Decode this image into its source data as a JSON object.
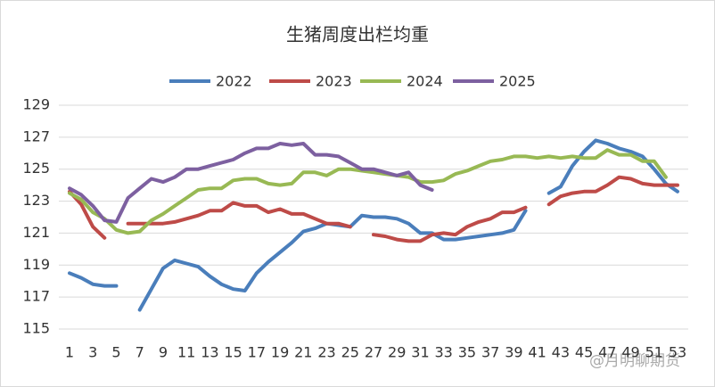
{
  "chart_data": {
    "type": "line",
    "title": "生猪周度出栏均重",
    "watermark": "@月明聊期货",
    "categories": [
      1,
      null,
      3,
      null,
      5,
      null,
      7,
      null,
      9,
      null,
      11,
      null,
      13,
      null,
      15,
      null,
      17,
      null,
      19,
      null,
      21,
      null,
      23,
      null,
      25,
      null,
      27,
      null,
      29,
      null,
      31,
      null,
      33,
      null,
      35,
      null,
      37,
      null,
      39,
      null,
      41,
      null,
      43,
      null,
      45,
      null,
      47,
      null,
      49,
      null,
      51,
      null,
      53
    ],
    "ylim": [
      115,
      129
    ],
    "yticks": [
      115,
      117,
      119,
      121,
      123,
      125,
      127,
      129
    ],
    "grid": true,
    "legend": "top",
    "series": [
      {
        "name": "2022",
        "color": "#4a7ebb",
        "values": [
          118.5,
          118.2,
          117.8,
          117.7,
          117.7,
          null,
          116.2,
          117.5,
          118.8,
          119.3,
          119.1,
          118.9,
          118.3,
          117.8,
          117.5,
          117.4,
          118.5,
          119.2,
          119.8,
          120.4,
          121.1,
          121.3,
          121.6,
          121.5,
          121.4,
          122.1,
          122.0,
          122.0,
          121.9,
          121.6,
          121.0,
          121.0,
          120.6,
          120.6,
          120.7,
          120.8,
          120.9,
          121.0,
          121.2,
          122.4,
          null,
          123.5,
          123.9,
          125.2,
          126.1,
          126.8,
          126.6,
          126.3,
          126.1,
          125.8,
          125.0,
          124.1,
          123.6
        ]
      },
      {
        "name": "2023",
        "color": "#be4b48",
        "values": [
          123.6,
          122.8,
          121.4,
          120.7,
          null,
          121.6,
          121.6,
          121.6,
          121.6,
          121.7,
          121.9,
          122.1,
          122.4,
          122.4,
          122.9,
          122.7,
          122.7,
          122.3,
          122.5,
          122.2,
          122.2,
          121.9,
          121.6,
          121.6,
          121.4,
          null,
          120.9,
          120.8,
          120.6,
          120.5,
          120.5,
          120.9,
          121.0,
          120.9,
          121.4,
          121.7,
          121.9,
          122.3,
          122.3,
          122.6,
          null,
          122.8,
          123.3,
          123.5,
          123.6,
          123.6,
          124.0,
          124.5,
          124.4,
          124.1,
          124.0,
          124.0,
          124.0
        ]
      },
      {
        "name": "2024",
        "color": "#98b954",
        "values": [
          123.5,
          123.1,
          122.3,
          121.9,
          121.2,
          121.0,
          121.1,
          121.8,
          122.2,
          122.7,
          123.2,
          123.7,
          123.8,
          123.8,
          124.3,
          124.4,
          124.4,
          124.1,
          124.0,
          124.1,
          124.8,
          124.8,
          124.6,
          125.0,
          125.0,
          124.9,
          124.8,
          124.7,
          124.6,
          124.5,
          124.2,
          124.2,
          124.3,
          124.7,
          124.9,
          125.2,
          125.5,
          125.6,
          125.8,
          125.8,
          125.7,
          125.8,
          125.7,
          125.8,
          125.7,
          125.7,
          126.2,
          125.9,
          125.9,
          125.5,
          125.5,
          124.5,
          null
        ]
      },
      {
        "name": "2025",
        "color": "#7d60a0",
        "values": [
          123.8,
          123.4,
          122.7,
          121.8,
          121.7,
          123.2,
          123.8,
          124.4,
          124.2,
          124.5,
          125.0,
          125.0,
          125.2,
          125.4,
          125.6,
          126.0,
          126.3,
          126.3,
          126.6,
          126.5,
          126.6,
          125.9,
          125.9,
          125.8,
          125.4,
          125.0,
          125.0,
          124.8,
          124.6,
          124.8,
          124.0,
          123.7,
          null,
          null,
          null,
          null,
          null,
          null,
          null,
          null,
          null,
          null,
          null,
          null,
          null,
          null,
          null,
          null,
          null,
          null,
          null,
          null,
          null
        ]
      }
    ]
  }
}
